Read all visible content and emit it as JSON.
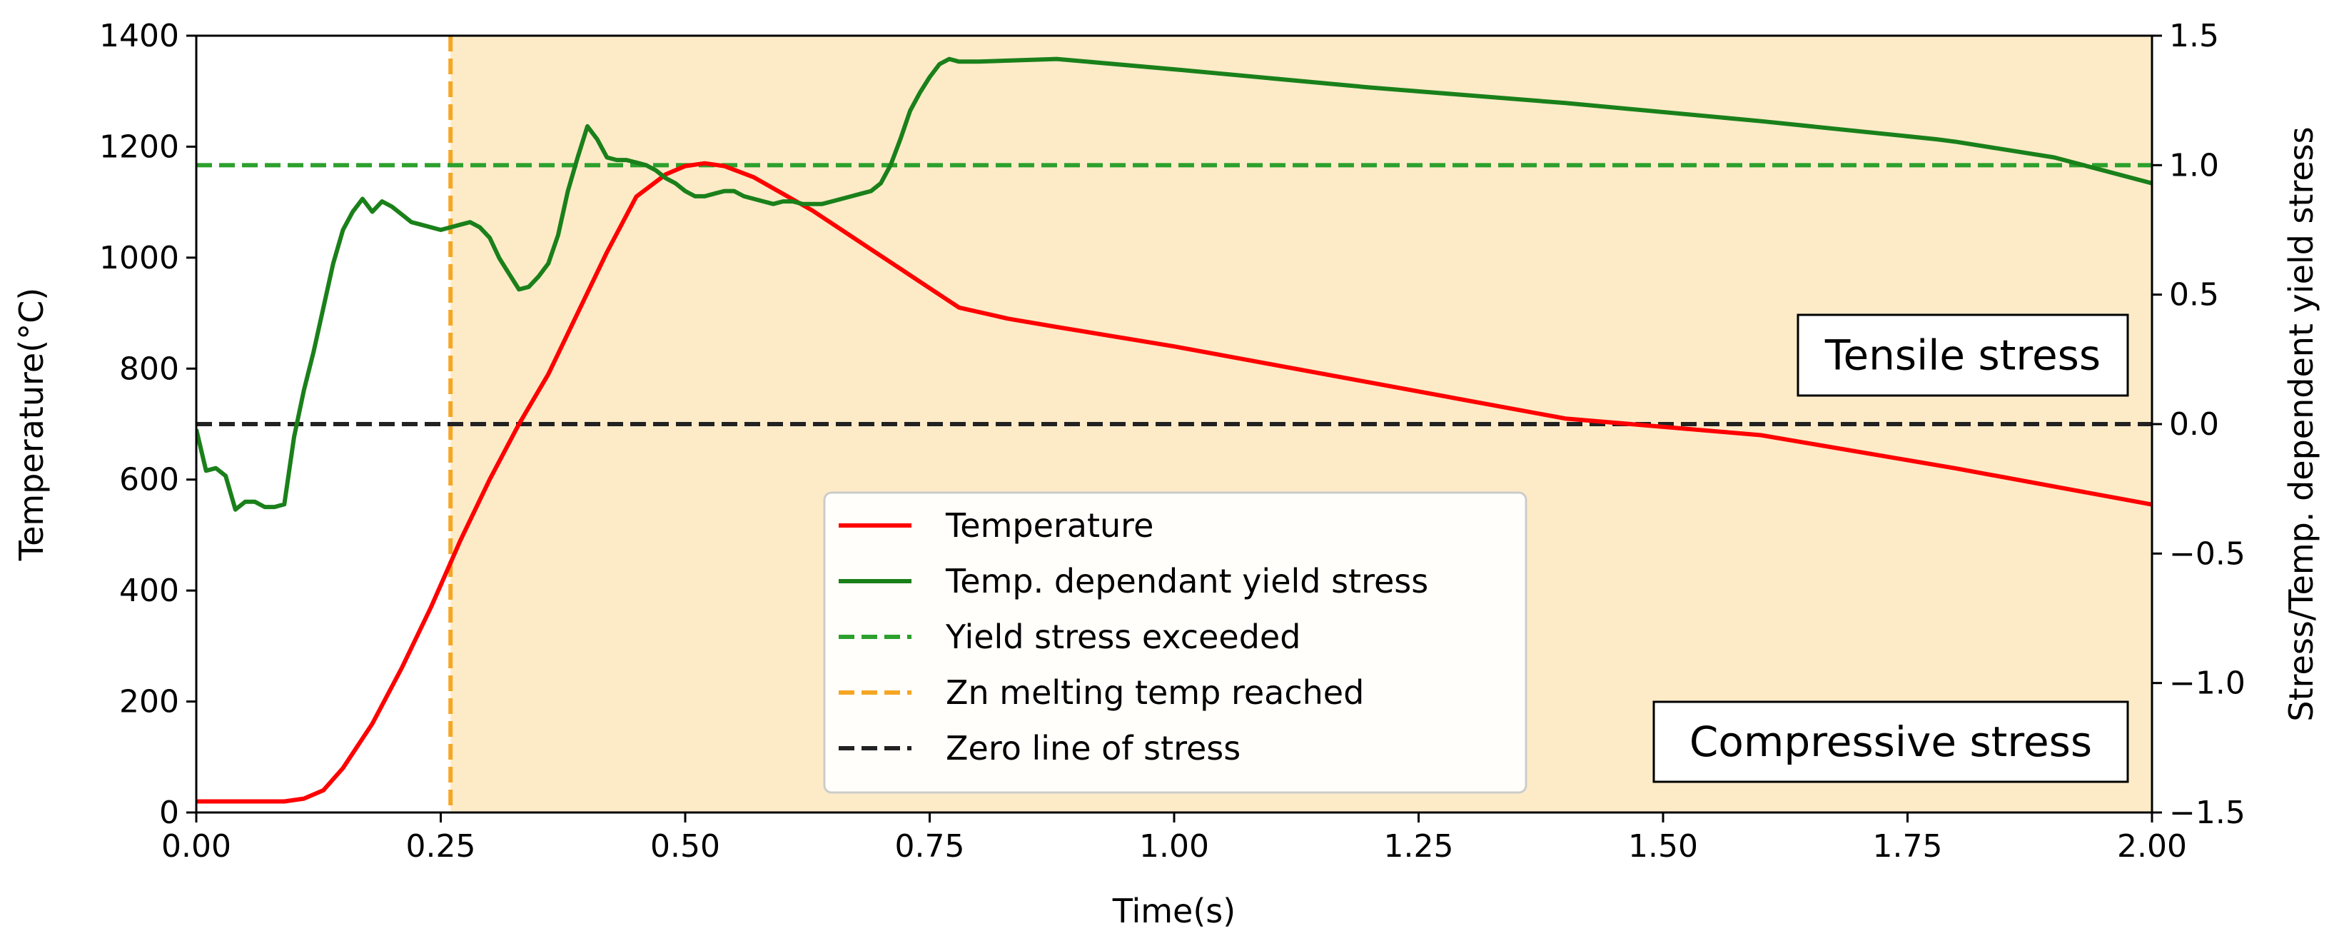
{
  "chart_data": {
    "type": "line",
    "title": "",
    "xlabel": "Time(s)",
    "ylabel_left": "Temperature(°C)",
    "ylabel_right": "Stress/Temp. dependent yield stress",
    "xlim": [
      0,
      2.0
    ],
    "ylim_left": [
      0,
      1400
    ],
    "ylim_right": [
      -1.5,
      1.5
    ],
    "x_ticks": [
      "0.00",
      "0.25",
      "0.50",
      "0.75",
      "1.00",
      "1.25",
      "1.50",
      "1.75",
      "2.00"
    ],
    "x_tick_values": [
      0,
      0.25,
      0.5,
      0.75,
      1.0,
      1.25,
      1.5,
      1.75,
      2.0
    ],
    "y_left_ticks": [
      "0",
      "200",
      "400",
      "600",
      "800",
      "1000",
      "1200",
      "1400"
    ],
    "y_left_tick_values": [
      0,
      200,
      400,
      600,
      800,
      1000,
      1200,
      1400
    ],
    "y_right_ticks": [
      "−1.5",
      "−1.0",
      "−0.5",
      "0.0",
      "0.5",
      "1.0",
      "1.5"
    ],
    "y_right_tick_values": [
      -1.5,
      -1.0,
      -0.5,
      0.0,
      0.5,
      1.0,
      1.5
    ],
    "shaded_region": {
      "x_start": 0.26,
      "x_end": 2.0,
      "color": "#fdebc8"
    },
    "series": [
      {
        "name": "Temperature",
        "axis": "left",
        "color": "#ff0000",
        "style": "solid",
        "x": [
          0,
          0.05,
          0.09,
          0.11,
          0.13,
          0.15,
          0.18,
          0.21,
          0.24,
          0.27,
          0.3,
          0.33,
          0.36,
          0.39,
          0.42,
          0.45,
          0.48,
          0.5,
          0.52,
          0.54,
          0.57,
          0.6,
          0.63,
          0.66,
          0.69,
          0.72,
          0.75,
          0.78,
          0.83,
          0.88,
          1.0,
          1.2,
          1.4,
          1.6,
          1.8,
          2.0
        ],
        "y": [
          20,
          20,
          20,
          25,
          40,
          80,
          160,
          260,
          370,
          490,
          600,
          700,
          790,
          900,
          1010,
          1110,
          1150,
          1165,
          1170,
          1165,
          1145,
          1115,
          1085,
          1050,
          1015,
          980,
          945,
          910,
          890,
          875,
          840,
          775,
          710,
          680,
          620,
          555
        ]
      },
      {
        "name": "Temp. dependant yield stress",
        "axis": "right",
        "color": "#1a801a",
        "style": "solid",
        "x": [
          0,
          0.01,
          0.02,
          0.03,
          0.04,
          0.05,
          0.06,
          0.07,
          0.08,
          0.09,
          0.1,
          0.11,
          0.12,
          0.13,
          0.14,
          0.15,
          0.16,
          0.17,
          0.18,
          0.19,
          0.2,
          0.21,
          0.22,
          0.23,
          0.24,
          0.25,
          0.26,
          0.27,
          0.28,
          0.29,
          0.3,
          0.31,
          0.32,
          0.33,
          0.34,
          0.35,
          0.36,
          0.37,
          0.38,
          0.39,
          0.4,
          0.41,
          0.42,
          0.43,
          0.44,
          0.45,
          0.46,
          0.47,
          0.48,
          0.49,
          0.5,
          0.51,
          0.52,
          0.53,
          0.54,
          0.55,
          0.56,
          0.57,
          0.58,
          0.59,
          0.6,
          0.61,
          0.62,
          0.63,
          0.64,
          0.65,
          0.66,
          0.67,
          0.68,
          0.69,
          0.7,
          0.71,
          0.72,
          0.73,
          0.74,
          0.75,
          0.76,
          0.77,
          0.78,
          0.8,
          0.88,
          1.0,
          1.2,
          1.4,
          1.6,
          1.78,
          1.8,
          1.9,
          2.0
        ],
        "y": [
          -0.02,
          -0.18,
          -0.17,
          -0.2,
          -0.33,
          -0.3,
          -0.3,
          -0.32,
          -0.32,
          -0.31,
          -0.05,
          0.13,
          0.28,
          0.45,
          0.62,
          0.75,
          0.82,
          0.87,
          0.82,
          0.86,
          0.84,
          0.81,
          0.78,
          0.77,
          0.76,
          0.75,
          0.76,
          0.77,
          0.78,
          0.76,
          0.72,
          0.64,
          0.58,
          0.52,
          0.53,
          0.57,
          0.62,
          0.73,
          0.9,
          1.03,
          1.15,
          1.1,
          1.03,
          1.02,
          1.02,
          1.01,
          1.0,
          0.98,
          0.95,
          0.93,
          0.9,
          0.88,
          0.88,
          0.89,
          0.9,
          0.9,
          0.88,
          0.87,
          0.86,
          0.85,
          0.86,
          0.86,
          0.85,
          0.85,
          0.85,
          0.86,
          0.87,
          0.88,
          0.89,
          0.9,
          0.93,
          1.0,
          1.1,
          1.21,
          1.28,
          1.34,
          1.39,
          1.41,
          1.4,
          1.4,
          1.41,
          1.37,
          1.3,
          1.24,
          1.17,
          1.1,
          1.09,
          1.03,
          0.93
        ]
      },
      {
        "name": "Yield stress exceeded",
        "axis": "right",
        "color": "#2ca02c",
        "style": "dashed",
        "type": "hline",
        "y": 1.0
      },
      {
        "name": "Zn melting temp reached",
        "axis": "left",
        "color": "#f5a623",
        "style": "dashed",
        "type": "vline",
        "x": 0.26
      },
      {
        "name": "Zero line of stress",
        "axis": "right",
        "color": "#222222",
        "style": "dashed",
        "type": "hline",
        "y": 0.0
      }
    ],
    "legend": [
      "Temperature",
      "Temp. dependant yield stress",
      "Yield stress exceeded",
      "Zn melting temp reached",
      "Zero line of stress"
    ],
    "legend_position": "lower-center",
    "annotations": [
      {
        "text": "Tensile stress",
        "x": 1.75,
        "y_right": 0.28
      },
      {
        "text": "Compressive stress",
        "x": 1.72,
        "y_right": -1.21
      }
    ]
  }
}
